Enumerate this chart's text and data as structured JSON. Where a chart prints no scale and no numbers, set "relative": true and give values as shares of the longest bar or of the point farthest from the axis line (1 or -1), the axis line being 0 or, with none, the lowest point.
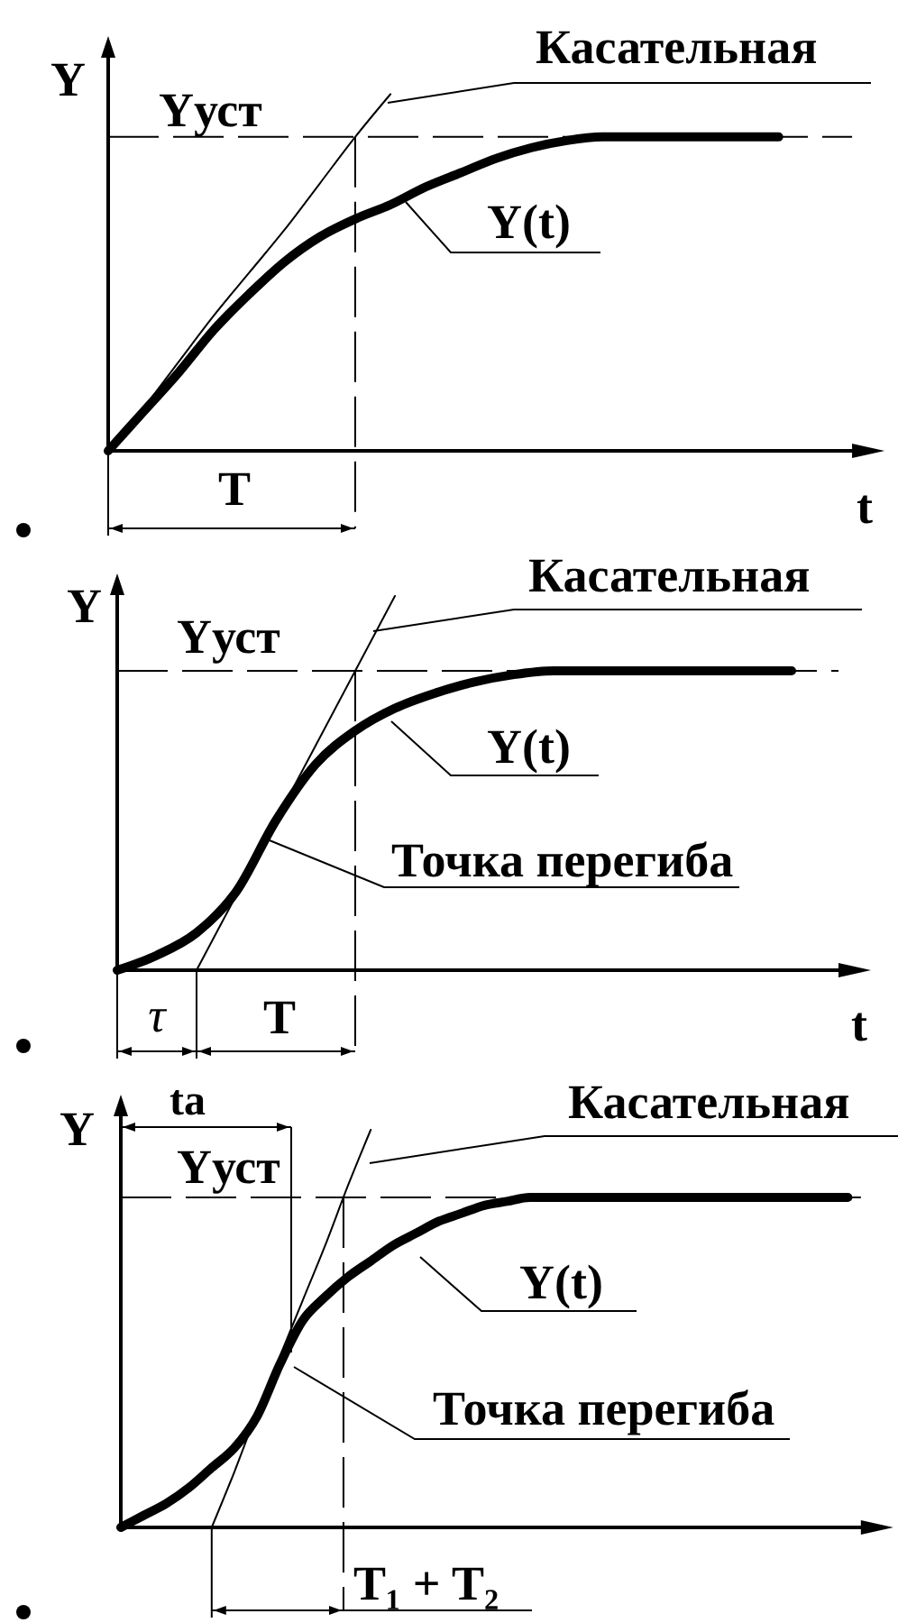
{
  "chart_data": [
    {
      "type": "line",
      "relative": true,
      "xlabel": "t",
      "ylabel": "Y",
      "categories": [
        null,
        null,
        null,
        null,
        null,
        null,
        null,
        null,
        null,
        null,
        null,
        null,
        null,
        null,
        null,
        null,
        null,
        null,
        null,
        null,
        null,
        null,
        null
      ],
      "series": [
        {
          "name": "Y(t)",
          "color": "#000000",
          "values": [
            0,
            0.11,
            0.22,
            0.34,
            0.44,
            0.53,
            0.6,
            0.65,
            0.69,
            0.74,
            0.78,
            0.82,
            0.85,
            0.87,
            0.88,
            0.88,
            0.88,
            0.88,
            0.88,
            0.88,
            null,
            null,
            null
          ]
        },
        {
          "name": "Касательная",
          "color": "#000000",
          "values": [
            0,
            0.12,
            0.25,
            0.38,
            0.5,
            0.62,
            0.75,
            0.88,
            1,
            null,
            null,
            null,
            null,
            null,
            null,
            null,
            null,
            null,
            null,
            null,
            null,
            null,
            null
          ]
        }
      ],
      "ref_lines": [
        {
          "axis": "y",
          "value": 0.88,
          "label": "Yуст",
          "line_style": "dashed"
        }
      ],
      "annotations": [
        "T"
      ]
    },
    {
      "type": "line",
      "relative": true,
      "xlabel": "t",
      "ylabel": "Y",
      "categories": [
        null,
        null,
        null,
        null,
        null,
        null,
        null,
        null,
        null,
        null,
        null,
        null,
        null,
        null,
        null,
        null,
        null,
        null,
        null,
        null
      ],
      "series": [
        {
          "name": "Y(t)",
          "color": "#000000",
          "values": [
            0,
            0.04,
            0.1,
            0.21,
            0.4,
            0.55,
            0.64,
            0.7,
            0.74,
            0.77,
            0.79,
            0.8,
            0.8,
            0.8,
            0.8,
            0.8,
            0.8,
            0.8,
            null,
            null
          ]
        },
        {
          "name": "Касательная",
          "color": "#000000",
          "values": [
            null,
            null,
            0,
            0.2,
            0.4,
            0.6,
            0.8,
            1,
            null,
            null,
            null,
            null,
            null,
            null,
            null,
            null,
            null,
            null,
            null,
            null
          ]
        }
      ],
      "ref_lines": [
        {
          "axis": "y",
          "value": 0.8,
          "label": "Yуст",
          "line_style": "dashed"
        }
      ],
      "annotations": [
        "τ",
        "T",
        "Точка перегиба"
      ]
    },
    {
      "type": "line",
      "relative": true,
      "ylabel": "Y",
      "categories": [
        null,
        null,
        null,
        null,
        null,
        null,
        null,
        null,
        null,
        null,
        null,
        null,
        null,
        null,
        null,
        null,
        null,
        null,
        null,
        null,
        null,
        null,
        null,
        null,
        null,
        null,
        null,
        null,
        null,
        null,
        null,
        null,
        null,
        null,
        null
      ],
      "series": [
        {
          "name": "Y(t)",
          "color": "#000000",
          "values": [
            0,
            0.03,
            0.06,
            0.1,
            0.15,
            0.2,
            0.28,
            0.41,
            0.52,
            0.58,
            0.63,
            0.67,
            0.71,
            0.74,
            0.77,
            0.79,
            0.81,
            0.82,
            0.83,
            0.83,
            0.83,
            0.83,
            0.83,
            0.83,
            0.83,
            0.83,
            0.83,
            0.83,
            0.83,
            0.83,
            0.83,
            0.83,
            0.83,
            null,
            null
          ]
        },
        {
          "name": "Касательная",
          "color": "#000000",
          "values": [
            null,
            null,
            null,
            null,
            0,
            0.14,
            0.29,
            0.43,
            0.57,
            0.71,
            0.86,
            1,
            null,
            null,
            null,
            null,
            null,
            null,
            null,
            null,
            null,
            null,
            null,
            null,
            null,
            null,
            null,
            null,
            null,
            null,
            null,
            null,
            null,
            null,
            null
          ]
        }
      ],
      "ref_lines": [
        {
          "axis": "y",
          "value": 0.83,
          "label": "Yуст",
          "line_style": "dashed"
        }
      ],
      "annotations": [
        "ta",
        "T₁ + T₂",
        "Точка перегиба"
      ]
    }
  ]
}
